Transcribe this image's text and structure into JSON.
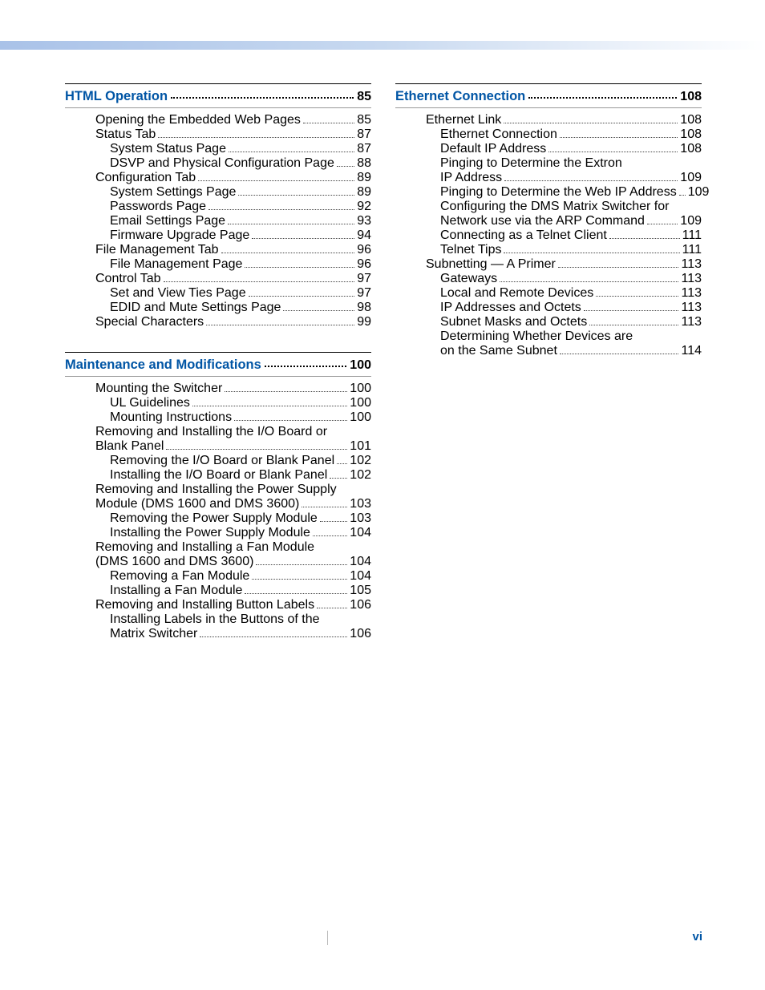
{
  "page_number": "vi",
  "colors": {
    "section_title": "#0055a5",
    "text": "#231f20",
    "gradient_start": "#a9c2e8",
    "gradient_end": "#ffffff",
    "page_num": "#0055a5"
  },
  "left_column": [
    {
      "title": "HTML Operation",
      "page": "85",
      "entries": [
        {
          "indent": 0,
          "lines": [
            "Opening the Embedded Web Pages"
          ],
          "page": "85"
        },
        {
          "indent": 0,
          "lines": [
            "Status Tab"
          ],
          "page": "87"
        },
        {
          "indent": 1,
          "lines": [
            "System Status Page"
          ],
          "page": "87"
        },
        {
          "indent": 1,
          "lines": [
            "DSVP and Physical Configuration Page"
          ],
          "page": "88"
        },
        {
          "indent": 0,
          "lines": [
            "Configuration Tab"
          ],
          "page": "89"
        },
        {
          "indent": 1,
          "lines": [
            "System Settings Page"
          ],
          "page": "89"
        },
        {
          "indent": 1,
          "lines": [
            "Passwords Page"
          ],
          "page": "92"
        },
        {
          "indent": 1,
          "lines": [
            "Email Settings Page"
          ],
          "page": "93"
        },
        {
          "indent": 1,
          "lines": [
            "Firmware Upgrade Page"
          ],
          "page": "94"
        },
        {
          "indent": 0,
          "lines": [
            "File Management Tab"
          ],
          "page": "96"
        },
        {
          "indent": 1,
          "lines": [
            "File Management Page"
          ],
          "page": "96"
        },
        {
          "indent": 0,
          "lines": [
            "Control Tab"
          ],
          "page": "97"
        },
        {
          "indent": 1,
          "lines": [
            "Set and View Ties Page"
          ],
          "page": "97"
        },
        {
          "indent": 1,
          "lines": [
            "EDID and Mute Settings Page"
          ],
          "page": "98"
        },
        {
          "indent": 0,
          "lines": [
            "Special Characters"
          ],
          "page": "99"
        }
      ]
    },
    {
      "title": "Maintenance and Modifications",
      "page": "100",
      "entries": [
        {
          "indent": 0,
          "lines": [
            "Mounting the Switcher"
          ],
          "page": "100"
        },
        {
          "indent": 1,
          "lines": [
            "UL Guidelines"
          ],
          "page": "100"
        },
        {
          "indent": 1,
          "lines": [
            "Mounting Instructions"
          ],
          "page": "100"
        },
        {
          "indent": 0,
          "lines": [
            "Removing and Installing the I/O Board or",
            "Blank Panel"
          ],
          "page": "101"
        },
        {
          "indent": 1,
          "lines": [
            "Removing the I/O Board or Blank Panel"
          ],
          "page": "102"
        },
        {
          "indent": 1,
          "lines": [
            "Installing the I/O Board or Blank Panel"
          ],
          "page": "102"
        },
        {
          "indent": 0,
          "lines": [
            "Removing and Installing the Power Supply",
            "Module (DMS 1600 and DMS 3600)"
          ],
          "page": "103"
        },
        {
          "indent": 1,
          "lines": [
            "Removing the Power Supply Module"
          ],
          "page": "103"
        },
        {
          "indent": 1,
          "lines": [
            "Installing the Power Supply Module"
          ],
          "page": "104"
        },
        {
          "indent": 0,
          "lines": [
            "Removing and Installing a Fan Module",
            "(DMS 1600 and DMS 3600)"
          ],
          "page": "104"
        },
        {
          "indent": 1,
          "lines": [
            "Removing a Fan Module"
          ],
          "page": "104"
        },
        {
          "indent": 1,
          "lines": [
            "Installing a Fan Module"
          ],
          "page": "105"
        },
        {
          "indent": 0,
          "lines": [
            "Removing and Installing Button Labels"
          ],
          "page": "106"
        },
        {
          "indent": 1,
          "lines": [
            "Installing Labels in the Buttons of the",
            "Matrix Switcher"
          ],
          "page": "106"
        }
      ]
    }
  ],
  "right_column": [
    {
      "title": "Ethernet Connection",
      "page": "108",
      "entries": [
        {
          "indent": 0,
          "lines": [
            "Ethernet Link"
          ],
          "page": "108"
        },
        {
          "indent": 1,
          "lines": [
            "Ethernet Connection"
          ],
          "page": "108"
        },
        {
          "indent": 1,
          "lines": [
            "Default IP Address"
          ],
          "page": "108"
        },
        {
          "indent": 1,
          "lines": [
            "Pinging to Determine the Extron",
            "IP Address"
          ],
          "page": "109"
        },
        {
          "indent": 1,
          "lines": [
            "Pinging to Determine the Web IP Address"
          ],
          "page": "109"
        },
        {
          "indent": 1,
          "lines": [
            "Configuring the DMS Matrix Switcher for",
            "Network use via the ARP Command"
          ],
          "page": "109"
        },
        {
          "indent": 1,
          "lines": [
            "Connecting as a Telnet Client"
          ],
          "page": "111"
        },
        {
          "indent": 1,
          "lines": [
            "Telnet Tips"
          ],
          "page": "111"
        },
        {
          "indent": 0,
          "lines": [
            "Subnetting — A Primer"
          ],
          "page": "113"
        },
        {
          "indent": 1,
          "lines": [
            "Gateways"
          ],
          "page": "113"
        },
        {
          "indent": 1,
          "lines": [
            "Local and Remote Devices"
          ],
          "page": "113"
        },
        {
          "indent": 1,
          "lines": [
            "IP Addresses and Octets"
          ],
          "page": "113"
        },
        {
          "indent": 1,
          "lines": [
            "Subnet Masks and Octets"
          ],
          "page": "113"
        },
        {
          "indent": 1,
          "lines": [
            "Determining Whether Devices are",
            "on the Same Subnet"
          ],
          "page": "114"
        }
      ]
    }
  ]
}
